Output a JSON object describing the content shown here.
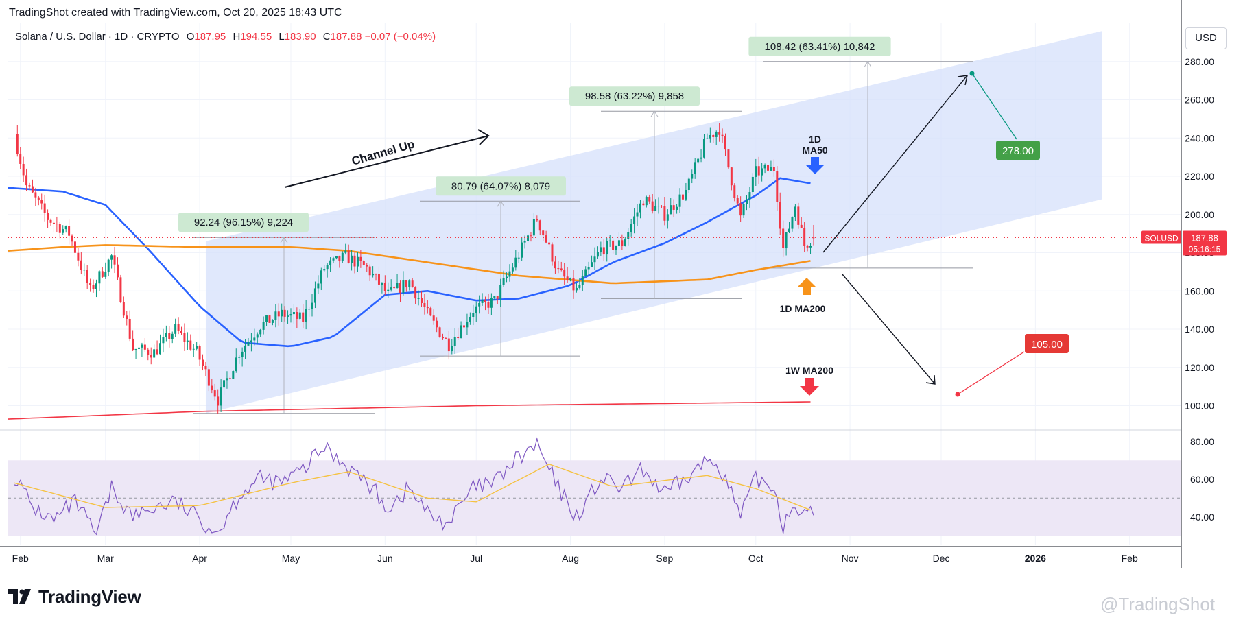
{
  "header": {
    "caption": "TradingShot created with TradingView.com, Oct 20, 2025 18:43 UTC"
  },
  "legend": {
    "symbol": "Solana / U.S. Dollar · 1D · CRYPTO",
    "o_label": "O",
    "o": "187.95",
    "h_label": "H",
    "h": "194.55",
    "l_label": "L",
    "l": "183.90",
    "c_label": "C",
    "c": "187.88",
    "change": "−0.07 (−0.04%)"
  },
  "currency_button": "USD",
  "price_badge": {
    "symbol": "SOLUSD",
    "price": "187.88",
    "countdown": "05:16:15"
  },
  "branding": {
    "logo_text": "TradingView",
    "watermark": "@TradingShot"
  },
  "colors": {
    "up": "#089981",
    "down": "#f23645",
    "ma50": "#2962ff",
    "ma200": "#f7931a",
    "w_ma200": "#f23645",
    "channel": "#d6e0fb",
    "rsi": "#7e57c2",
    "rsi_ma": "#f5c242",
    "rsi_band": "#ede7f6"
  },
  "chart_data": {
    "type": "candlestick",
    "symbol": "Solana / U.S. Dollar",
    "interval": "1D",
    "price_axis": {
      "ticks": [
        100,
        120,
        140,
        160,
        180,
        200,
        220,
        240,
        260,
        280
      ],
      "tick_labels": [
        "100.00",
        "120.00",
        "140.00",
        "160.00",
        "180.00",
        "200.00",
        "220.00",
        "240.00",
        "260.00",
        "280.00"
      ],
      "range": [
        88,
        300
      ]
    },
    "time_axis": {
      "labels": [
        "Feb",
        "Mar",
        "Apr",
        "May",
        "Jun",
        "Jul",
        "Aug",
        "Sep",
        "Oct",
        "Nov",
        "Dec",
        "2026",
        "Feb"
      ],
      "dates": [
        "2025-02-01",
        "2025-03-01",
        "2025-04-01",
        "2025-05-01",
        "2025-06-01",
        "2025-07-01",
        "2025-08-01",
        "2025-09-01",
        "2025-10-01",
        "2025-11-01",
        "2025-12-01",
        "2026-01-01",
        "2026-02-01"
      ],
      "range": [
        "2025-01-28",
        "2026-02-18"
      ]
    },
    "price_path": [
      [
        "2025-01-30",
        242
      ],
      [
        "2025-02-03",
        215
      ],
      [
        "2025-02-10",
        198
      ],
      [
        "2025-02-17",
        190
      ],
      [
        "2025-02-24",
        160
      ],
      [
        "2025-03-03",
        178
      ],
      [
        "2025-03-10",
        130
      ],
      [
        "2025-03-17",
        128
      ],
      [
        "2025-03-24",
        140
      ],
      [
        "2025-03-31",
        128
      ],
      [
        "2025-04-07",
        103
      ],
      [
        "2025-04-14",
        128
      ],
      [
        "2025-04-21",
        142
      ],
      [
        "2025-04-28",
        148
      ],
      [
        "2025-05-05",
        145
      ],
      [
        "2025-05-12",
        172
      ],
      [
        "2025-05-19",
        178
      ],
      [
        "2025-05-26",
        172
      ],
      [
        "2025-06-02",
        158
      ],
      [
        "2025-06-09",
        165
      ],
      [
        "2025-06-16",
        145
      ],
      [
        "2025-06-22",
        132
      ],
      [
        "2025-06-30",
        150
      ],
      [
        "2025-07-07",
        155
      ],
      [
        "2025-07-14",
        176
      ],
      [
        "2025-07-21",
        198
      ],
      [
        "2025-07-28",
        170
      ],
      [
        "2025-08-03",
        160
      ],
      [
        "2025-08-11",
        182
      ],
      [
        "2025-08-18",
        185
      ],
      [
        "2025-08-25",
        208
      ],
      [
        "2025-09-01",
        200
      ],
      [
        "2025-09-08",
        212
      ],
      [
        "2025-09-15",
        240
      ],
      [
        "2025-09-19",
        245
      ],
      [
        "2025-09-26",
        198
      ],
      [
        "2025-10-01",
        222
      ],
      [
        "2025-10-07",
        224
      ],
      [
        "2025-10-10",
        182
      ],
      [
        "2025-10-14",
        205
      ],
      [
        "2025-10-17",
        184
      ],
      [
        "2025-10-20",
        188
      ]
    ],
    "last_bar": {
      "date": "2025-10-20",
      "open": 187.95,
      "high": 194.55,
      "low": 183.9,
      "close": 187.88
    },
    "moving_averages": [
      {
        "name": "1D MA50",
        "points": [
          [
            "2025-01-28",
            214
          ],
          [
            "2025-02-15",
            212
          ],
          [
            "2025-03-01",
            205
          ],
          [
            "2025-03-15",
            182
          ],
          [
            "2025-04-01",
            152
          ],
          [
            "2025-04-15",
            133
          ],
          [
            "2025-05-01",
            131
          ],
          [
            "2025-05-15",
            136
          ],
          [
            "2025-06-01",
            158
          ],
          [
            "2025-06-15",
            160
          ],
          [
            "2025-07-01",
            155
          ],
          [
            "2025-07-15",
            156
          ],
          [
            "2025-08-01",
            163
          ],
          [
            "2025-08-15",
            175
          ],
          [
            "2025-09-01",
            185
          ],
          [
            "2025-09-15",
            196
          ],
          [
            "2025-10-01",
            210
          ],
          [
            "2025-10-09",
            219
          ],
          [
            "2025-10-20",
            216
          ]
        ]
      },
      {
        "name": "1D MA200",
        "points": [
          [
            "2025-01-28",
            181
          ],
          [
            "2025-02-15",
            183
          ],
          [
            "2025-03-01",
            184
          ],
          [
            "2025-04-01",
            183
          ],
          [
            "2025-05-01",
            183
          ],
          [
            "2025-05-20",
            181
          ],
          [
            "2025-06-15",
            175
          ],
          [
            "2025-07-15",
            168
          ],
          [
            "2025-08-15",
            164
          ],
          [
            "2025-09-15",
            166
          ],
          [
            "2025-10-01",
            171
          ],
          [
            "2025-10-20",
            176
          ]
        ]
      },
      {
        "name": "1W MA200",
        "points": [
          [
            "2025-01-28",
            93
          ],
          [
            "2025-04-01",
            97
          ],
          [
            "2025-07-01",
            100
          ],
          [
            "2025-10-20",
            102
          ]
        ]
      }
    ],
    "channel": {
      "label": "Channel Up",
      "upper": [
        [
          "2025-04-03",
          186
        ],
        [
          "2026-01-23",
          296
        ]
      ],
      "lower": [
        [
          "2025-04-03",
          96
        ],
        [
          "2026-01-23",
          208
        ]
      ]
    },
    "measurements": [
      {
        "label": "92.24 (96.15%) 9,224",
        "from": 96,
        "to": 188
      },
      {
        "label": "80.79 (64.07%) 8,079",
        "from": 126,
        "to": 207
      },
      {
        "label": "98.58 (63.22%) 9,858",
        "from": 156,
        "to": 254
      },
      {
        "label": "108.42 (63.41%) 10,842",
        "from": 172,
        "to": 280
      }
    ],
    "targets": [
      {
        "label": "278.00",
        "value": 278
      },
      {
        "label": "105.00",
        "value": 105
      }
    ],
    "annotations": [
      "1D MA50",
      "1D MA200",
      "1W MA200"
    ],
    "rsi": {
      "axis_ticks": [
        40,
        60,
        80
      ],
      "tick_labels": [
        "40.00",
        "60.00",
        "80.00"
      ],
      "range": [
        25,
        85
      ],
      "band": [
        30,
        70
      ],
      "values": [
        [
          "2025-01-30",
          62
        ],
        [
          "2025-02-05",
          45
        ],
        [
          "2025-02-12",
          38
        ],
        [
          "2025-02-19",
          48
        ],
        [
          "2025-02-26",
          30
        ],
        [
          "2025-03-03",
          55
        ],
        [
          "2025-03-10",
          40
        ],
        [
          "2025-03-17",
          45
        ],
        [
          "2025-03-24",
          48
        ],
        [
          "2025-03-31",
          40
        ],
        [
          "2025-04-07",
          32
        ],
        [
          "2025-04-14",
          52
        ],
        [
          "2025-04-21",
          60
        ],
        [
          "2025-04-28",
          58
        ],
        [
          "2025-05-05",
          65
        ],
        [
          "2025-05-12",
          77
        ],
        [
          "2025-05-19",
          68
        ],
        [
          "2025-05-26",
          58
        ],
        [
          "2025-06-02",
          45
        ],
        [
          "2025-06-09",
          55
        ],
        [
          "2025-06-16",
          40
        ],
        [
          "2025-06-22",
          37
        ],
        [
          "2025-06-30",
          55
        ],
        [
          "2025-07-07",
          58
        ],
        [
          "2025-07-14",
          70
        ],
        [
          "2025-07-21",
          78
        ],
        [
          "2025-07-28",
          55
        ],
        [
          "2025-08-03",
          40
        ],
        [
          "2025-08-11",
          60
        ],
        [
          "2025-08-18",
          55
        ],
        [
          "2025-08-25",
          65
        ],
        [
          "2025-09-01",
          52
        ],
        [
          "2025-09-08",
          60
        ],
        [
          "2025-09-15",
          70
        ],
        [
          "2025-09-19",
          68
        ],
        [
          "2025-09-26",
          40
        ],
        [
          "2025-10-01",
          60
        ],
        [
          "2025-10-07",
          56
        ],
        [
          "2025-10-10",
          36
        ],
        [
          "2025-10-14",
          48
        ],
        [
          "2025-10-17",
          40
        ],
        [
          "2025-10-20",
          42
        ]
      ],
      "ma": [
        [
          "2025-01-30",
          58
        ],
        [
          "2025-03-01",
          45
        ],
        [
          "2025-04-01",
          46
        ],
        [
          "2025-05-01",
          58
        ],
        [
          "2025-05-20",
          64
        ],
        [
          "2025-06-15",
          50
        ],
        [
          "2025-07-01",
          48
        ],
        [
          "2025-07-25",
          68
        ],
        [
          "2025-08-15",
          56
        ],
        [
          "2025-09-15",
          62
        ],
        [
          "2025-10-01",
          55
        ],
        [
          "2025-10-20",
          43
        ]
      ]
    }
  }
}
